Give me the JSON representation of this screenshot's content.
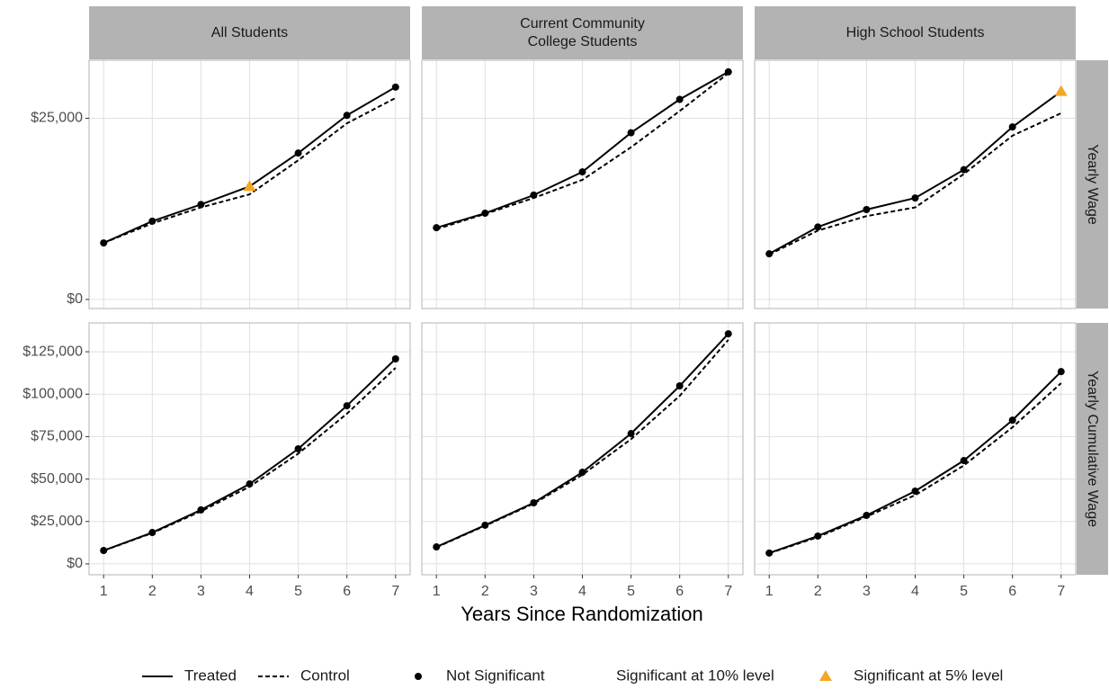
{
  "chart_data": [
    {
      "type": "line",
      "title": "All Students",
      "grid": true,
      "x": [
        1,
        2,
        3,
        4,
        5,
        6,
        7
      ],
      "xlim": [
        0.7,
        7.3
      ],
      "xticks": [
        1,
        2,
        3,
        4,
        5,
        6,
        7
      ],
      "ylim": [
        -1250,
        33000
      ],
      "yticks": [
        {
          "value": 0,
          "label": "$0"
        },
        {
          "value": 25000,
          "label": "$25,000"
        }
      ],
      "series": [
        {
          "name": "Treated",
          "color": "#000000",
          "dash": "solid",
          "values": [
            7800,
            10800,
            13100,
            15600,
            20200,
            25400,
            29300
          ],
          "markers": [
            "Not Significant",
            "Not Significant",
            "Not Significant",
            "Significant at 5% level",
            "Not Significant",
            "Not Significant",
            "Not Significant"
          ]
        },
        {
          "name": "Control",
          "color": "#000000",
          "dash": "dashed",
          "values": [
            7800,
            10500,
            12700,
            14500,
            19200,
            24300,
            27800
          ]
        }
      ]
    },
    {
      "type": "line",
      "title": "Current Community\nCollege Students",
      "grid": true,
      "x": [
        1,
        2,
        3,
        4,
        5,
        6,
        7
      ],
      "xlim": [
        0.7,
        7.3
      ],
      "xticks": [
        1,
        2,
        3,
        4,
        5,
        6,
        7
      ],
      "ylim": [
        -1250,
        33000
      ],
      "series": [
        {
          "name": "Treated",
          "color": "#000000",
          "dash": "solid",
          "values": [
            9900,
            11900,
            14400,
            17600,
            23000,
            27600,
            31400
          ],
          "markers": [
            "Not Significant",
            "Not Significant",
            "Not Significant",
            "Not Significant",
            "Not Significant",
            "Not Significant",
            "Not Significant"
          ]
        },
        {
          "name": "Control",
          "color": "#000000",
          "dash": "dashed",
          "values": [
            9700,
            11800,
            14000,
            16500,
            21000,
            26000,
            31200
          ]
        }
      ]
    },
    {
      "type": "line",
      "title": "High School Students",
      "strip_right": "Yearly Wage",
      "grid": true,
      "x": [
        1,
        2,
        3,
        4,
        5,
        6,
        7
      ],
      "xlim": [
        0.7,
        7.3
      ],
      "xticks": [
        1,
        2,
        3,
        4,
        5,
        6,
        7
      ],
      "ylim": [
        -1250,
        33000
      ],
      "series": [
        {
          "name": "Treated",
          "color": "#000000",
          "dash": "solid",
          "values": [
            6300,
            10000,
            12400,
            14000,
            17900,
            23800,
            28700
          ],
          "markers": [
            "Not Significant",
            "Not Significant",
            "Not Significant",
            "Not Significant",
            "Not Significant",
            "Not Significant",
            "Significant at 5% level"
          ]
        },
        {
          "name": "Control",
          "color": "#000000",
          "dash": "dashed",
          "values": [
            6200,
            9500,
            11500,
            12700,
            17300,
            22600,
            25700
          ]
        }
      ]
    },
    {
      "type": "line",
      "grid": true,
      "x": [
        1,
        2,
        3,
        4,
        5,
        6,
        7
      ],
      "xlim": [
        0.7,
        7.3
      ],
      "xticks": [
        1,
        2,
        3,
        4,
        5,
        6,
        7
      ],
      "ylim": [
        -6400,
        142000
      ],
      "yticks": [
        {
          "value": 0,
          "label": "$0"
        },
        {
          "value": 25000,
          "label": "$25,000"
        },
        {
          "value": 50000,
          "label": "$50,000"
        },
        {
          "value": 75000,
          "label": "$75,000"
        },
        {
          "value": 100000,
          "label": "$100,000"
        },
        {
          "value": 125000,
          "label": "$125,000"
        }
      ],
      "series": [
        {
          "name": "Treated",
          "color": "#000000",
          "dash": "solid",
          "values": [
            7900,
            18500,
            31800,
            47100,
            67800,
            93200,
            120800
          ],
          "markers": [
            "Not Significant",
            "Not Significant",
            "Not Significant",
            "Not Significant",
            "Not Significant",
            "Not Significant",
            "Not Significant"
          ]
        },
        {
          "name": "Control",
          "color": "#000000",
          "dash": "dashed",
          "values": [
            7800,
            18200,
            31000,
            45500,
            65000,
            88500,
            115500
          ]
        }
      ]
    },
    {
      "type": "line",
      "grid": true,
      "x": [
        1,
        2,
        3,
        4,
        5,
        6,
        7
      ],
      "xlim": [
        0.7,
        7.3
      ],
      "xticks": [
        1,
        2,
        3,
        4,
        5,
        6,
        7
      ],
      "ylim": [
        -6400,
        142000
      ],
      "series": [
        {
          "name": "Treated",
          "color": "#000000",
          "dash": "solid",
          "values": [
            10000,
            22800,
            36000,
            54000,
            76800,
            104900,
            135600
          ],
          "markers": [
            "Not Significant",
            "Not Significant",
            "Not Significant",
            "Not Significant",
            "Not Significant",
            "Not Significant",
            "Not Significant"
          ]
        },
        {
          "name": "Control",
          "color": "#000000",
          "dash": "dashed",
          "values": [
            9800,
            22500,
            35500,
            52500,
            73500,
            99000,
            132000
          ]
        }
      ]
    },
    {
      "type": "line",
      "strip_right": "Yearly Cumulative Wage",
      "grid": true,
      "x": [
        1,
        2,
        3,
        4,
        5,
        6,
        7
      ],
      "xlim": [
        0.7,
        7.3
      ],
      "xticks": [
        1,
        2,
        3,
        4,
        5,
        6,
        7
      ],
      "ylim": [
        -6400,
        142000
      ],
      "series": [
        {
          "name": "Treated",
          "color": "#000000",
          "dash": "solid",
          "values": [
            6400,
            16400,
            28600,
            42900,
            60900,
            84700,
            113300
          ],
          "markers": [
            "Not Significant",
            "Not Significant",
            "Not Significant",
            "Not Significant",
            "Not Significant",
            "Not Significant",
            "Not Significant"
          ]
        },
        {
          "name": "Control",
          "color": "#000000",
          "dash": "dashed",
          "values": [
            6300,
            15800,
            27900,
            40500,
            58000,
            80500,
            106500
          ]
        }
      ]
    }
  ],
  "x_label": "Years Since Randomization",
  "marker_legend": [
    {
      "name": "Not Significant",
      "shape": "circle",
      "color": "#000000"
    },
    {
      "name": "Significant at 10% level",
      "shape": "none",
      "color": "#ffffff"
    },
    {
      "name": "Significant at 5% level",
      "shape": "triangle",
      "color": "#f5a623"
    }
  ]
}
